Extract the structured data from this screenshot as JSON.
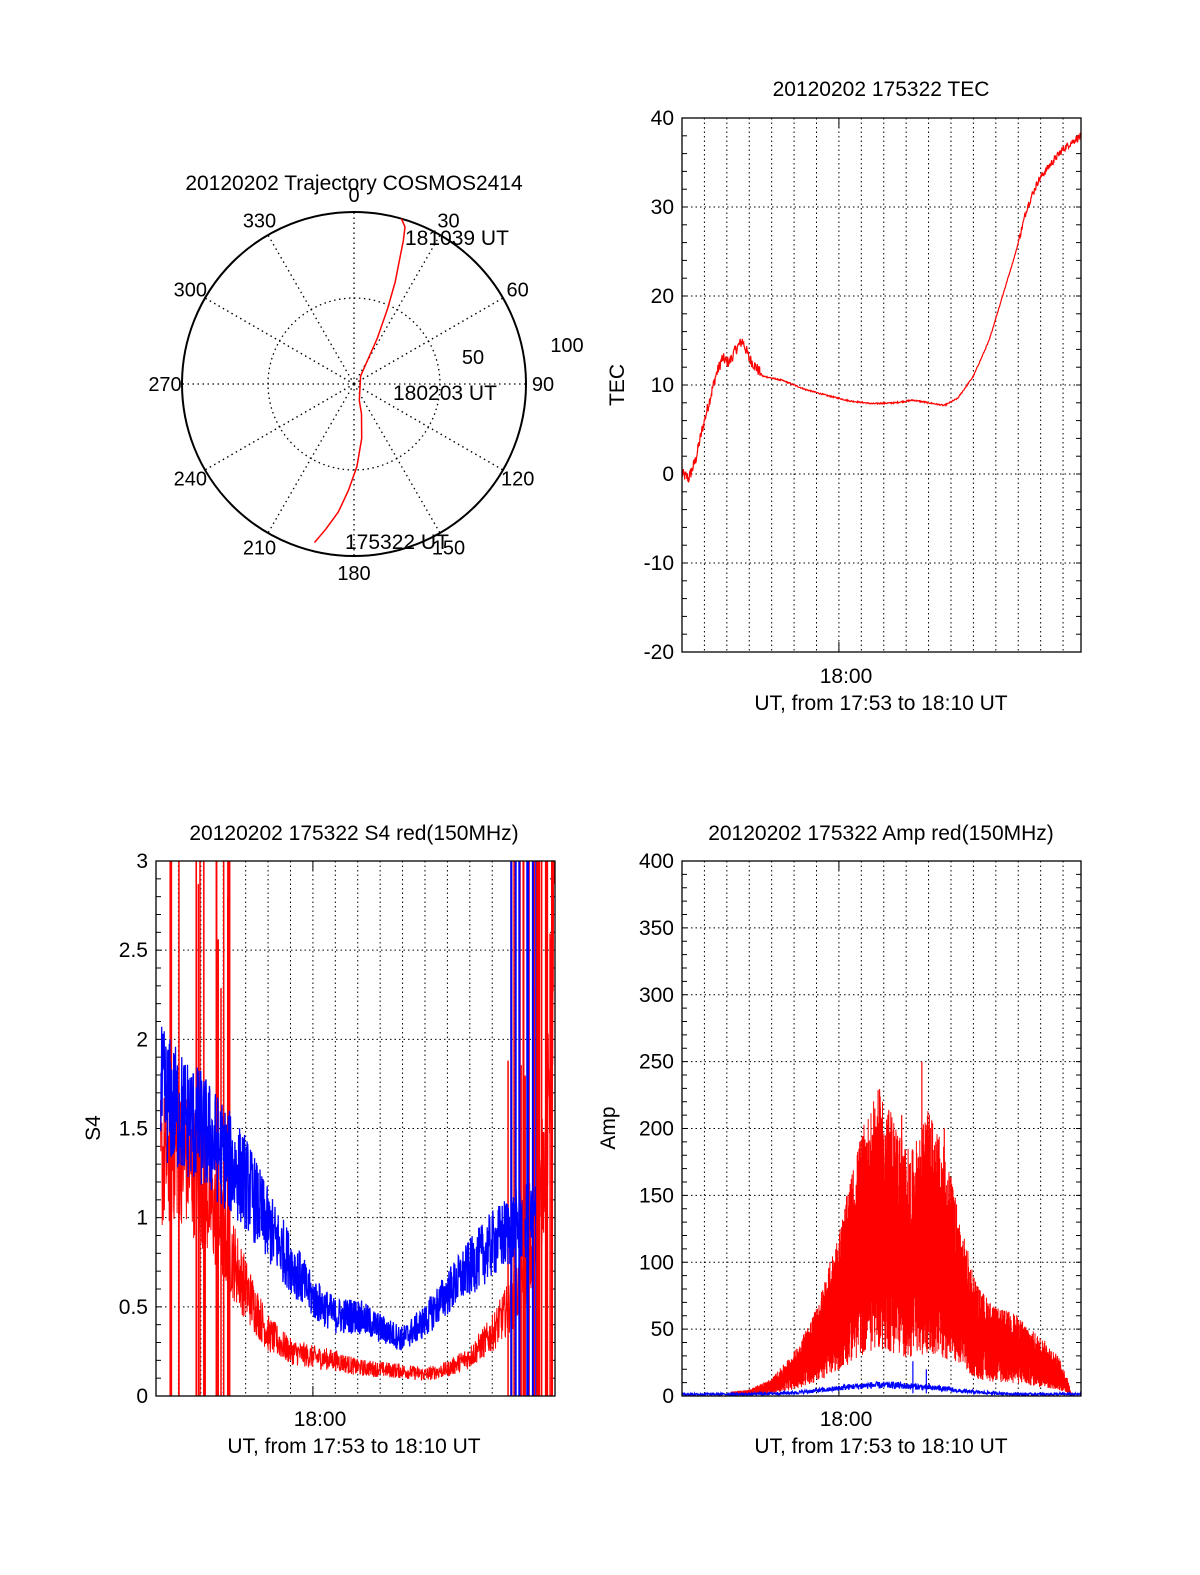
{
  "colors": {
    "red": "#ff0000",
    "blue": "#0000ff",
    "axis": "#000000",
    "grid": "#000000"
  },
  "chart_data": [
    {
      "type": "polar-trajectory",
      "title": "20120202 Trajectory COSMOS2414",
      "azimuth_labels": [
        "0",
        "30",
        "60",
        "90",
        "120",
        "150",
        "180",
        "210",
        "240",
        "270",
        "300",
        "330"
      ],
      "radius_labels": [
        "50",
        "100"
      ],
      "rlim": [
        0,
        100
      ],
      "grid": true,
      "series": [
        {
          "color": "red",
          "points": [
            [
              194,
              95
            ],
            [
              191,
              86
            ],
            [
              187,
              75
            ],
            [
              183,
              62
            ],
            [
              178,
              48
            ],
            [
              172,
              32
            ],
            [
              166,
              18
            ],
            [
              162,
              10
            ],
            [
              40,
              6
            ],
            [
              27,
              30
            ],
            [
              24,
              48
            ],
            [
              22,
              64
            ],
            [
              20,
              78
            ],
            [
              19,
              88
            ],
            [
              18,
              96
            ],
            [
              16,
              100
            ]
          ]
        }
      ],
      "annotations": [
        "181039 UT",
        "180203 UT",
        "175322 UT"
      ]
    },
    {
      "type": "line",
      "title": "20120202 175322 TEC",
      "ylabel": "TEC",
      "xlabel": "UT, from 17:53 to 18:10 UT",
      "xtick_labels": [
        "18:00"
      ],
      "ylim": [
        -20,
        40
      ],
      "yticks": [
        -20,
        -10,
        0,
        10,
        20,
        30,
        40
      ],
      "grid": true,
      "x_range_min": [
        0,
        17.8
      ],
      "series": [
        {
          "color": "red",
          "points": [
            [
              0,
              0
            ],
            [
              0.3,
              -0.5
            ],
            [
              0.6,
              1.5
            ],
            [
              0.9,
              5
            ],
            [
              1.2,
              8
            ],
            [
              1.5,
              11
            ],
            [
              1.8,
              13
            ],
            [
              2.1,
              12.5
            ],
            [
              2.4,
              14
            ],
            [
              2.7,
              15
            ],
            [
              3.0,
              13
            ],
            [
              3.3,
              12
            ],
            [
              3.6,
              11
            ],
            [
              4.5,
              10.5
            ],
            [
              5.5,
              9.5
            ],
            [
              6.5,
              8.8
            ],
            [
              7.5,
              8.2
            ],
            [
              8.5,
              7.9
            ],
            [
              9.5,
              8.0
            ],
            [
              10.3,
              8.3
            ],
            [
              11.0,
              8.0
            ],
            [
              11.7,
              7.7
            ],
            [
              12.3,
              8.5
            ],
            [
              13.0,
              11
            ],
            [
              13.7,
              15
            ],
            [
              14.3,
              20
            ],
            [
              14.9,
              25
            ],
            [
              15.4,
              30
            ],
            [
              15.9,
              33
            ],
            [
              16.5,
              35
            ],
            [
              17.0,
              36.5
            ],
            [
              17.5,
              37.5
            ],
            [
              17.8,
              38
            ]
          ]
        }
      ]
    },
    {
      "type": "line",
      "title": "20120202 175322 S4 red(150MHz)",
      "ylabel": "S4",
      "xlabel": "UT, from 17:53 to 18:10 UT",
      "xtick_labels": [
        "18:00"
      ],
      "ylim": [
        0,
        3
      ],
      "yticks": [
        0,
        0.5,
        1,
        1.5,
        2,
        2.5,
        3
      ],
      "ytick_labels": [
        "0",
        "0.5",
        "1",
        "1.5",
        "2",
        "2.5",
        "3"
      ],
      "grid": true,
      "series": [
        {
          "color": "blue",
          "points": [
            [
              0.2,
              1.7
            ],
            [
              1.0,
              1.6
            ],
            [
              2.0,
              1.5
            ],
            [
              3.0,
              1.35
            ],
            [
              4.0,
              1.2
            ],
            [
              5.0,
              0.95
            ],
            [
              6.0,
              0.75
            ],
            [
              7.0,
              0.55
            ],
            [
              8.0,
              0.45
            ],
            [
              9.0,
              0.45
            ],
            [
              10.0,
              0.38
            ],
            [
              11.0,
              0.32
            ],
            [
              12.0,
              0.42
            ],
            [
              13.0,
              0.58
            ],
            [
              14.0,
              0.72
            ],
            [
              15.0,
              0.85
            ],
            [
              16.0,
              0.95
            ],
            [
              17.0,
              1.0
            ]
          ]
        },
        {
          "color": "red",
          "points": [
            [
              0.2,
              1.3
            ],
            [
              1.0,
              1.4
            ],
            [
              2.0,
              1.2
            ],
            [
              3.0,
              0.9
            ],
            [
              4.0,
              0.6
            ],
            [
              5.0,
              0.35
            ],
            [
              6.0,
              0.25
            ],
            [
              7.0,
              0.22
            ],
            [
              8.0,
              0.2
            ],
            [
              9.0,
              0.16
            ],
            [
              10.0,
              0.15
            ],
            [
              11.0,
              0.14
            ],
            [
              12.0,
              0.12
            ],
            [
              13.0,
              0.15
            ],
            [
              14.0,
              0.22
            ],
            [
              15.0,
              0.35
            ],
            [
              16.0,
              0.55
            ],
            [
              17.0,
              0.85
            ],
            [
              17.5,
              1.6
            ],
            [
              17.8,
              2.8
            ]
          ]
        }
      ]
    },
    {
      "type": "line",
      "title": "20120202 175322 Amp red(150MHz)",
      "ylabel": "Amp",
      "xlabel": "UT, from 17:53 to 18:10 UT",
      "xtick_labels": [
        "18:00"
      ],
      "ylim": [
        0,
        400
      ],
      "yticks": [
        0,
        50,
        100,
        150,
        200,
        250,
        300,
        350,
        400
      ],
      "grid": true,
      "series": [
        {
          "color": "red",
          "points": [
            [
              2.2,
              2
            ],
            [
              3.0,
              3
            ],
            [
              4.0,
              8
            ],
            [
              5.0,
              20
            ],
            [
              6.0,
              40
            ],
            [
              7.0,
              75
            ],
            [
              8.0,
              120
            ],
            [
              8.8,
              140
            ],
            [
              9.5,
              125
            ],
            [
              10.2,
              110
            ],
            [
              11.0,
              130
            ],
            [
              11.8,
              110
            ],
            [
              12.5,
              75
            ],
            [
              13.2,
              50
            ],
            [
              14.0,
              40
            ],
            [
              14.8,
              38
            ],
            [
              15.6,
              30
            ],
            [
              16.2,
              25
            ],
            [
              16.8,
              18
            ],
            [
              17.2,
              8
            ],
            [
              17.4,
              0
            ]
          ]
        },
        {
          "color": "blue",
          "points": [
            [
              0,
              1
            ],
            [
              3.0,
              1
            ],
            [
              5.0,
              2
            ],
            [
              6.5,
              4
            ],
            [
              7.5,
              6
            ],
            [
              8.5,
              7
            ],
            [
              9.5,
              7
            ],
            [
              10.5,
              6
            ],
            [
              11.5,
              5
            ],
            [
              12.5,
              3
            ],
            [
              13.5,
              2
            ],
            [
              15.0,
              1
            ],
            [
              17.8,
              1
            ]
          ]
        }
      ]
    }
  ]
}
